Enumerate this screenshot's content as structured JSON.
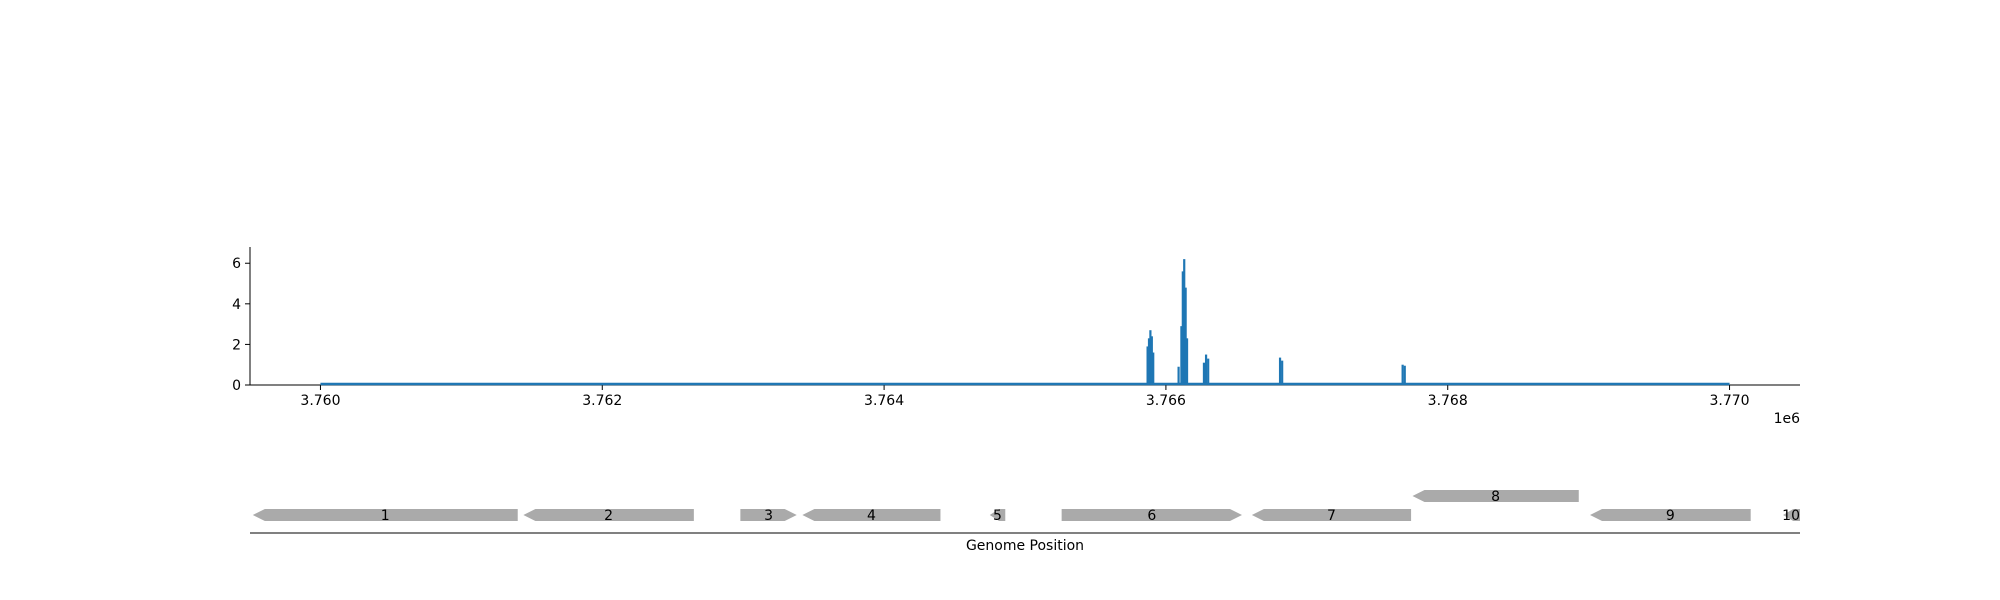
{
  "chart_data": [
    {
      "type": "line",
      "title": "",
      "xlabel": "",
      "ylabel": "",
      "x_offset_label": "1e6",
      "xlim": [
        3759500,
        3770500
      ],
      "ylim": [
        0,
        6.8
      ],
      "x_ticks": [
        3760000,
        3762000,
        3764000,
        3766000,
        3768000,
        3770000
      ],
      "x_tick_labels": [
        "3.760",
        "3.762",
        "3.764",
        "3.766",
        "3.768",
        "3.770"
      ],
      "y_ticks": [
        0,
        2,
        4,
        6
      ],
      "y_tick_labels": [
        "0",
        "2",
        "4",
        "6"
      ],
      "color": "#1f77b4",
      "baseline": {
        "x_start": 3760000,
        "x_end": 3770000,
        "value": 0
      },
      "peaks": [
        {
          "x": 3765870,
          "value": 1.9
        },
        {
          "x": 3765880,
          "value": 2.3
        },
        {
          "x": 3765890,
          "value": 2.7
        },
        {
          "x": 3765900,
          "value": 2.4
        },
        {
          "x": 3765910,
          "value": 1.6
        },
        {
          "x": 3766090,
          "value": 0.9
        },
        {
          "x": 3766110,
          "value": 2.9
        },
        {
          "x": 3766120,
          "value": 5.6
        },
        {
          "x": 3766130,
          "value": 6.2
        },
        {
          "x": 3766140,
          "value": 4.8
        },
        {
          "x": 3766150,
          "value": 2.3
        },
        {
          "x": 3766270,
          "value": 1.1
        },
        {
          "x": 3766285,
          "value": 1.5
        },
        {
          "x": 3766300,
          "value": 1.3
        },
        {
          "x": 3766810,
          "value": 1.35
        },
        {
          "x": 3766825,
          "value": 1.2
        },
        {
          "x": 3767680,
          "value": 1.0
        },
        {
          "x": 3767695,
          "value": 0.95
        }
      ]
    },
    {
      "type": "gene-track",
      "xlabel": "Genome Position",
      "xlim": [
        3759500,
        3770500
      ],
      "fill_color": "#aaaaaa",
      "genes": [
        {
          "label": "1",
          "start": 3759520,
          "end": 3761400,
          "strand": "-",
          "row": 0
        },
        {
          "label": "2",
          "start": 3761440,
          "end": 3762650,
          "strand": "-",
          "row": 0
        },
        {
          "label": "3",
          "start": 3762980,
          "end": 3763380,
          "strand": "+",
          "row": 0
        },
        {
          "label": "4",
          "start": 3763420,
          "end": 3764400,
          "strand": "-",
          "row": 0
        },
        {
          "label": "5",
          "start": 3764750,
          "end": 3764860,
          "strand": "-",
          "row": 0
        },
        {
          "label": "6",
          "start": 3765260,
          "end": 3766540,
          "strand": "+",
          "row": 0
        },
        {
          "label": "7",
          "start": 3766610,
          "end": 3767740,
          "strand": "-",
          "row": 0
        },
        {
          "label": "8",
          "start": 3767750,
          "end": 3768930,
          "strand": "-",
          "row": 1
        },
        {
          "label": "9",
          "start": 3769010,
          "end": 3770150,
          "strand": "-",
          "row": 0
        },
        {
          "label": "10",
          "start": 3770380,
          "end": 3770500,
          "strand": "-",
          "row": 0
        }
      ]
    }
  ]
}
